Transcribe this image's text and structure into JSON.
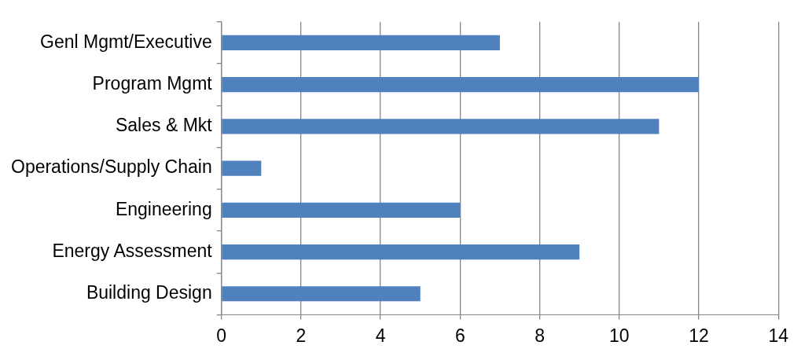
{
  "chart_data": {
    "type": "bar",
    "orientation": "horizontal",
    "categories": [
      "Genl Mgmt/Executive",
      "Program Mgmt",
      "Sales & Mkt",
      "Operations/Supply Chain",
      "Engineering",
      "Energy Assessment",
      "Building Design"
    ],
    "values": [
      7,
      12,
      11,
      1,
      6,
      9,
      5
    ],
    "color": "#4f81bd",
    "xlim": [
      0,
      14
    ],
    "xticks": [
      0,
      2,
      4,
      6,
      8,
      10,
      12,
      14
    ],
    "grid": "x",
    "legend": false
  }
}
